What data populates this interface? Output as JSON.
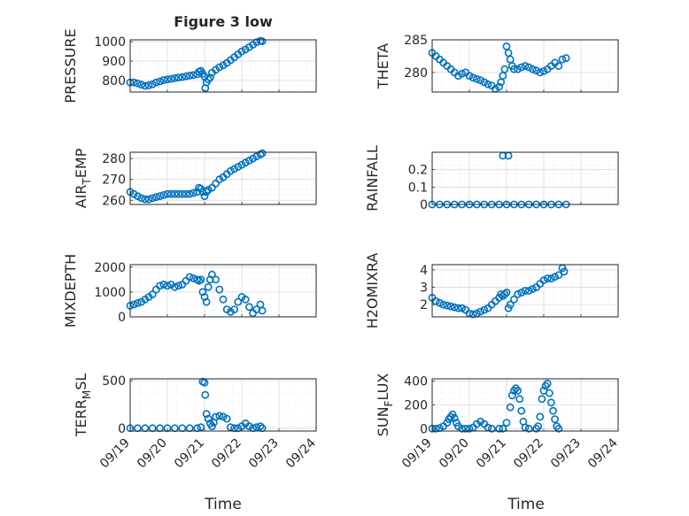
{
  "figure": {
    "title": "Figure 3 low",
    "xlabel": "Time"
  },
  "x_tick_labels": [
    "09/19",
    "09/20",
    "09/21",
    "09/22",
    "09/23",
    "09/24"
  ],
  "colors": {
    "marker": "#0072BD",
    "axis": "#262626",
    "grid": "#d9d9d9",
    "minor_grid": "#ededed"
  },
  "chart_data": [
    {
      "type": "scatter",
      "ylabel": "PRESSURE",
      "ylabel_sub": "",
      "ylabel_after": "",
      "yticks": [
        800,
        900,
        1000
      ],
      "ylim": [
        740,
        1010
      ],
      "xlim": [
        0,
        5
      ],
      "points": [
        [
          0,
          790
        ],
        [
          0.1,
          790
        ],
        [
          0.2,
          785
        ],
        [
          0.3,
          778
        ],
        [
          0.4,
          772
        ],
        [
          0.5,
          775
        ],
        [
          0.6,
          780
        ],
        [
          0.7,
          790
        ],
        [
          0.8,
          795
        ],
        [
          0.9,
          802
        ],
        [
          1.0,
          805
        ],
        [
          1.1,
          808
        ],
        [
          1.2,
          812
        ],
        [
          1.3,
          815
        ],
        [
          1.4,
          818
        ],
        [
          1.5,
          822
        ],
        [
          1.6,
          825
        ],
        [
          1.7,
          828
        ],
        [
          1.8,
          832
        ],
        [
          1.85,
          845
        ],
        [
          1.9,
          850
        ],
        [
          1.95,
          835
        ],
        [
          2.0,
          820
        ],
        [
          2.02,
          760
        ],
        [
          2.05,
          790
        ],
        [
          2.1,
          805
        ],
        [
          2.15,
          815
        ],
        [
          2.2,
          840
        ],
        [
          2.3,
          855
        ],
        [
          2.4,
          868
        ],
        [
          2.5,
          878
        ],
        [
          2.6,
          890
        ],
        [
          2.7,
          905
        ],
        [
          2.8,
          920
        ],
        [
          2.9,
          935
        ],
        [
          3.0,
          950
        ],
        [
          3.1,
          960
        ],
        [
          3.2,
          972
        ],
        [
          3.3,
          985
        ],
        [
          3.4,
          998
        ],
        [
          3.5,
          1005
        ],
        [
          3.55,
          1002
        ]
      ]
    },
    {
      "type": "scatter",
      "ylabel": "THETA",
      "ylabel_sub": "",
      "ylabel_after": "",
      "yticks": [
        280,
        285
      ],
      "ylim": [
        277,
        285
      ],
      "xlim": [
        0,
        5
      ],
      "points": [
        [
          0,
          283
        ],
        [
          0.1,
          282.5
        ],
        [
          0.2,
          282
        ],
        [
          0.3,
          281.5
        ],
        [
          0.4,
          281
        ],
        [
          0.5,
          280.5
        ],
        [
          0.6,
          280
        ],
        [
          0.7,
          279.5
        ],
        [
          0.8,
          279.8
        ],
        [
          0.9,
          280
        ],
        [
          1.0,
          279.5
        ],
        [
          1.1,
          279.2
        ],
        [
          1.2,
          279
        ],
        [
          1.3,
          278.8
        ],
        [
          1.4,
          278.5
        ],
        [
          1.5,
          278.2
        ],
        [
          1.6,
          278
        ],
        [
          1.7,
          277.5
        ],
        [
          1.8,
          277.8
        ],
        [
          1.85,
          278.5
        ],
        [
          1.9,
          279.5
        ],
        [
          1.95,
          280.5
        ],
        [
          2.0,
          284
        ],
        [
          2.05,
          283
        ],
        [
          2.1,
          282
        ],
        [
          2.15,
          281
        ],
        [
          2.2,
          280.5
        ],
        [
          2.3,
          280.5
        ],
        [
          2.4,
          280.8
        ],
        [
          2.5,
          281
        ],
        [
          2.6,
          280.8
        ],
        [
          2.7,
          280.5
        ],
        [
          2.8,
          280.3
        ],
        [
          2.9,
          280
        ],
        [
          3.0,
          280.2
        ],
        [
          3.1,
          280.5
        ],
        [
          3.2,
          281
        ],
        [
          3.3,
          281.5
        ],
        [
          3.4,
          281
        ],
        [
          3.5,
          282
        ],
        [
          3.6,
          282.2
        ]
      ]
    },
    {
      "type": "scatter",
      "ylabel": "AIR",
      "ylabel_sub": "T",
      "ylabel_after": "EMP",
      "yticks": [
        260,
        270,
        280
      ],
      "ylim": [
        258,
        283
      ],
      "xlim": [
        0,
        5
      ],
      "points": [
        [
          0,
          264
        ],
        [
          0.1,
          263
        ],
        [
          0.2,
          262
        ],
        [
          0.3,
          261
        ],
        [
          0.4,
          260.5
        ],
        [
          0.5,
          260.5
        ],
        [
          0.6,
          261
        ],
        [
          0.7,
          261.5
        ],
        [
          0.8,
          262
        ],
        [
          0.9,
          262.5
        ],
        [
          1.0,
          263
        ],
        [
          1.1,
          263
        ],
        [
          1.2,
          263
        ],
        [
          1.3,
          263
        ],
        [
          1.4,
          263
        ],
        [
          1.5,
          263
        ],
        [
          1.6,
          263
        ],
        [
          1.7,
          263.5
        ],
        [
          1.8,
          264
        ],
        [
          1.85,
          266
        ],
        [
          1.9,
          265.5
        ],
        [
          1.95,
          264
        ],
        [
          2.0,
          262
        ],
        [
          2.05,
          264
        ],
        [
          2.1,
          265
        ],
        [
          2.2,
          266
        ],
        [
          2.3,
          268
        ],
        [
          2.4,
          270
        ],
        [
          2.5,
          271
        ],
        [
          2.6,
          272.5
        ],
        [
          2.7,
          274
        ],
        [
          2.8,
          275
        ],
        [
          2.9,
          276
        ],
        [
          3.0,
          277
        ],
        [
          3.1,
          278
        ],
        [
          3.2,
          279
        ],
        [
          3.3,
          280
        ],
        [
          3.4,
          281
        ],
        [
          3.5,
          282
        ],
        [
          3.55,
          282.5
        ]
      ]
    },
    {
      "type": "scatter",
      "ylabel": "RAINFALL",
      "ylabel_sub": "",
      "ylabel_after": "",
      "yticks": [
        0,
        0.1,
        0.2
      ],
      "ylim": [
        0,
        0.3
      ],
      "xlim": [
        0,
        5
      ],
      "points": [
        [
          0,
          0
        ],
        [
          0.2,
          0
        ],
        [
          0.4,
          0
        ],
        [
          0.6,
          0
        ],
        [
          0.8,
          0
        ],
        [
          1.0,
          0
        ],
        [
          1.2,
          0
        ],
        [
          1.4,
          0
        ],
        [
          1.6,
          0
        ],
        [
          1.8,
          0
        ],
        [
          2.0,
          0
        ],
        [
          2.2,
          0
        ],
        [
          2.4,
          0
        ],
        [
          2.6,
          0
        ],
        [
          2.8,
          0
        ],
        [
          3.0,
          0
        ],
        [
          3.2,
          0
        ],
        [
          3.4,
          0
        ],
        [
          3.6,
          0
        ],
        [
          1.9,
          0.28
        ],
        [
          2.05,
          0.28
        ]
      ]
    },
    {
      "type": "scatter",
      "ylabel": "MIXDEPTH",
      "ylabel_sub": "",
      "ylabel_after": "",
      "yticks": [
        0,
        1000,
        2000
      ],
      "ylim": [
        0,
        2100
      ],
      "xlim": [
        0,
        5
      ],
      "points": [
        [
          0,
          450
        ],
        [
          0.1,
          500
        ],
        [
          0.2,
          550
        ],
        [
          0.3,
          600
        ],
        [
          0.4,
          700
        ],
        [
          0.5,
          800
        ],
        [
          0.6,
          900
        ],
        [
          0.7,
          1100
        ],
        [
          0.8,
          1250
        ],
        [
          0.9,
          1300
        ],
        [
          1.0,
          1250
        ],
        [
          1.1,
          1300
        ],
        [
          1.2,
          1200
        ],
        [
          1.3,
          1250
        ],
        [
          1.4,
          1300
        ],
        [
          1.5,
          1450
        ],
        [
          1.6,
          1600
        ],
        [
          1.7,
          1550
        ],
        [
          1.8,
          1500
        ],
        [
          1.85,
          1450
        ],
        [
          1.9,
          1500
        ],
        [
          1.95,
          1000
        ],
        [
          2.0,
          800
        ],
        [
          2.05,
          600
        ],
        [
          2.1,
          1200
        ],
        [
          2.15,
          1500
        ],
        [
          2.2,
          1700
        ],
        [
          2.3,
          1500
        ],
        [
          2.4,
          1100
        ],
        [
          2.5,
          700
        ],
        [
          2.6,
          300
        ],
        [
          2.7,
          200
        ],
        [
          2.8,
          300
        ],
        [
          2.9,
          600
        ],
        [
          3.0,
          800
        ],
        [
          3.1,
          700
        ],
        [
          3.2,
          400
        ],
        [
          3.3,
          150
        ],
        [
          3.4,
          300
        ],
        [
          3.5,
          500
        ],
        [
          3.55,
          250
        ]
      ]
    },
    {
      "type": "scatter",
      "ylabel": "H2OMIXRA",
      "ylabel_sub": "",
      "ylabel_after": "",
      "yticks": [
        2,
        3,
        4
      ],
      "ylim": [
        1.3,
        4.3
      ],
      "xlim": [
        0,
        5
      ],
      "points": [
        [
          0,
          2.4
        ],
        [
          0.1,
          2.2
        ],
        [
          0.2,
          2.1
        ],
        [
          0.3,
          2
        ],
        [
          0.4,
          1.95
        ],
        [
          0.5,
          1.9
        ],
        [
          0.6,
          1.85
        ],
        [
          0.7,
          1.8
        ],
        [
          0.8,
          1.8
        ],
        [
          0.9,
          1.7
        ],
        [
          1.0,
          1.5
        ],
        [
          1.1,
          1.45
        ],
        [
          1.2,
          1.5
        ],
        [
          1.3,
          1.6
        ],
        [
          1.4,
          1.7
        ],
        [
          1.5,
          1.8
        ],
        [
          1.6,
          2
        ],
        [
          1.7,
          2.2
        ],
        [
          1.8,
          2.4
        ],
        [
          1.85,
          2.6
        ],
        [
          1.9,
          2.5
        ],
        [
          1.95,
          2.6
        ],
        [
          2.0,
          2.7
        ],
        [
          2.05,
          1.8
        ],
        [
          2.1,
          2
        ],
        [
          2.2,
          2.3
        ],
        [
          2.3,
          2.6
        ],
        [
          2.4,
          2.7
        ],
        [
          2.5,
          2.8
        ],
        [
          2.6,
          2.8
        ],
        [
          2.7,
          2.9
        ],
        [
          2.8,
          3
        ],
        [
          2.9,
          3.2
        ],
        [
          3.0,
          3.4
        ],
        [
          3.1,
          3.5
        ],
        [
          3.2,
          3.5
        ],
        [
          3.3,
          3.6
        ],
        [
          3.4,
          3.7
        ],
        [
          3.5,
          4.1
        ],
        [
          3.55,
          3.9
        ]
      ]
    },
    {
      "type": "scatter",
      "ylabel": "TERR",
      "ylabel_sub": "M",
      "ylabel_after": "SL",
      "yticks": [
        0,
        500
      ],
      "ylim": [
        -30,
        520
      ],
      "xlim": [
        0,
        5
      ],
      "points": [
        [
          0,
          0
        ],
        [
          0.2,
          0
        ],
        [
          0.4,
          0
        ],
        [
          0.6,
          0
        ],
        [
          0.8,
          0
        ],
        [
          1.0,
          0
        ],
        [
          1.2,
          0
        ],
        [
          1.4,
          0
        ],
        [
          1.6,
          0
        ],
        [
          1.8,
          0
        ],
        [
          1.9,
          10
        ],
        [
          1.95,
          490
        ],
        [
          2.0,
          480
        ],
        [
          2.02,
          350
        ],
        [
          2.05,
          150
        ],
        [
          2.1,
          100
        ],
        [
          2.15,
          50
        ],
        [
          2.2,
          20
        ],
        [
          2.25,
          60
        ],
        [
          2.3,
          120
        ],
        [
          2.4,
          130
        ],
        [
          2.5,
          120
        ],
        [
          2.6,
          100
        ],
        [
          2.7,
          10
        ],
        [
          2.8,
          0
        ],
        [
          2.9,
          0
        ],
        [
          3.0,
          20
        ],
        [
          3.1,
          50
        ],
        [
          3.2,
          20
        ],
        [
          3.3,
          0
        ],
        [
          3.4,
          10
        ],
        [
          3.5,
          20
        ],
        [
          3.55,
          0
        ]
      ]
    },
    {
      "type": "scatter",
      "ylabel": "SUN",
      "ylabel_sub": "F",
      "ylabel_after": "LUX",
      "yticks": [
        0,
        200,
        400
      ],
      "ylim": [
        -20,
        420
      ],
      "xlim": [
        0,
        5
      ],
      "points": [
        [
          0,
          0
        ],
        [
          0.1,
          0
        ],
        [
          0.2,
          5
        ],
        [
          0.3,
          20
        ],
        [
          0.4,
          50
        ],
        [
          0.45,
          80
        ],
        [
          0.5,
          100
        ],
        [
          0.55,
          120
        ],
        [
          0.6,
          90
        ],
        [
          0.65,
          50
        ],
        [
          0.7,
          20
        ],
        [
          0.8,
          0
        ],
        [
          0.9,
          0
        ],
        [
          1.0,
          0
        ],
        [
          1.1,
          10
        ],
        [
          1.2,
          40
        ],
        [
          1.3,
          60
        ],
        [
          1.4,
          40
        ],
        [
          1.5,
          10
        ],
        [
          1.6,
          0
        ],
        [
          1.8,
          0
        ],
        [
          1.9,
          0
        ],
        [
          2.0,
          50
        ],
        [
          2.1,
          180
        ],
        [
          2.15,
          280
        ],
        [
          2.2,
          320
        ],
        [
          2.25,
          340
        ],
        [
          2.3,
          320
        ],
        [
          2.35,
          250
        ],
        [
          2.4,
          150
        ],
        [
          2.45,
          60
        ],
        [
          2.5,
          10
        ],
        [
          2.6,
          0
        ],
        [
          2.8,
          0
        ],
        [
          2.85,
          20
        ],
        [
          2.9,
          100
        ],
        [
          2.95,
          250
        ],
        [
          3.0,
          320
        ],
        [
          3.05,
          360
        ],
        [
          3.1,
          380
        ],
        [
          3.15,
          300
        ],
        [
          3.2,
          220
        ],
        [
          3.25,
          150
        ],
        [
          3.3,
          80
        ],
        [
          3.35,
          20
        ],
        [
          3.4,
          0
        ]
      ]
    }
  ]
}
